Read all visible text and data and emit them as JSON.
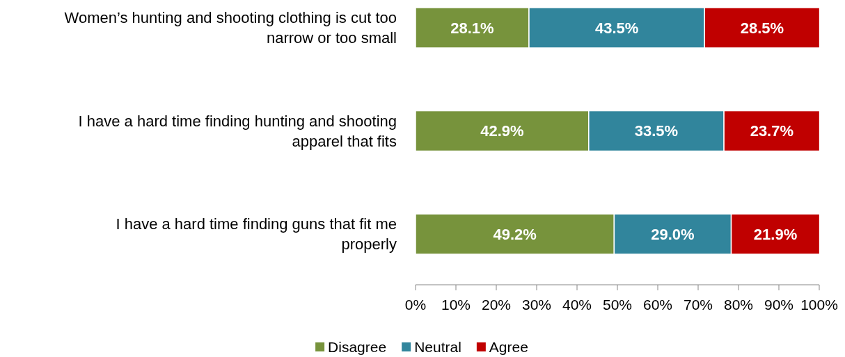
{
  "chart_data": {
    "type": "bar",
    "orientation": "horizontal",
    "stacked": true,
    "categories": [
      "Women’s hunting and shooting clothing is cut too narrow or too small",
      "I have a hard time finding hunting and shooting apparel that fits",
      "I have a hard time finding guns that fit me properly"
    ],
    "series": [
      {
        "name": "Disagree",
        "color": "#77933c",
        "values": [
          28.1,
          42.9,
          49.2
        ]
      },
      {
        "name": "Neutral",
        "color": "#31859c",
        "values": [
          43.5,
          33.5,
          29.0
        ]
      },
      {
        "name": "Agree",
        "color": "#c00000",
        "values": [
          28.5,
          23.7,
          21.9
        ]
      }
    ],
    "xlim": [
      0,
      100
    ],
    "xticks": [
      {
        "value": 0,
        "label": "0%"
      },
      {
        "value": 10,
        "label": "10%"
      },
      {
        "value": 20,
        "label": "20%"
      },
      {
        "value": 30,
        "label": "30%"
      },
      {
        "value": 40,
        "label": "40%"
      },
      {
        "value": 50,
        "label": "50%"
      },
      {
        "value": 60,
        "label": "60%"
      },
      {
        "value": 70,
        "label": "70%"
      },
      {
        "value": 80,
        "label": "80%"
      },
      {
        "value": 90,
        "label": "90%"
      },
      {
        "value": 100,
        "label": "100%"
      }
    ],
    "value_labels": [
      [
        "28.1%",
        "42.9%",
        "49.2%"
      ],
      [
        "43.5%",
        "33.5%",
        "29.0%"
      ],
      [
        "28.5%",
        "23.7%",
        "21.9%"
      ]
    ],
    "legend": "bottom",
    "grid": false
  }
}
